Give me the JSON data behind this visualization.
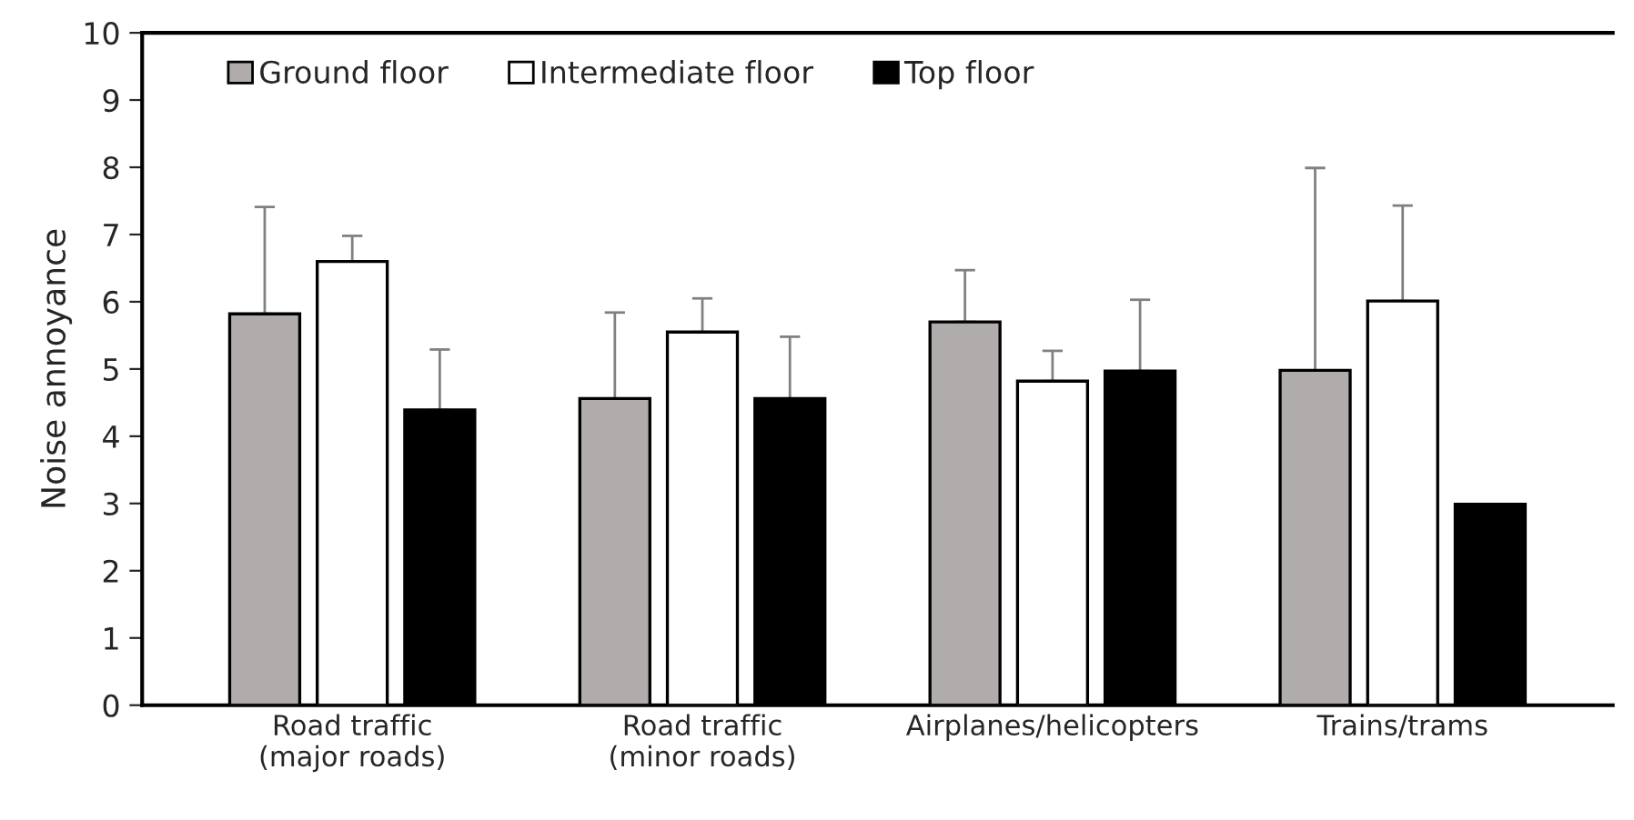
{
  "chart_data": {
    "type": "bar",
    "ylabel": "Noise annoyance",
    "categories": [
      "Road traffic\n(major roads)",
      "Road traffic\n(minor roads)",
      "Airplanes/helicopters",
      "Trains/trams"
    ],
    "series": [
      {
        "name": "Ground floor",
        "color": "#b0acab",
        "values": [
          5.82,
          4.56,
          5.7,
          4.98
        ],
        "errors": [
          [
            5.82,
            7.41
          ],
          [
            4.56,
            5.84
          ],
          [
            5.7,
            6.47
          ],
          [
            4.98,
            7.99
          ]
        ]
      },
      {
        "name": "Intermediate floor",
        "color": "#ffffff",
        "values": [
          6.6,
          5.55,
          4.82,
          6.01
        ],
        "errors": [
          [
            6.6,
            6.98
          ],
          [
            5.55,
            6.05
          ],
          [
            4.82,
            5.27
          ],
          [
            6.01,
            7.43
          ]
        ]
      },
      {
        "name": "Top floor",
        "color": "#000000",
        "values": [
          4.39,
          4.56,
          4.97,
          2.99
        ],
        "errors": [
          [
            4.39,
            5.29
          ],
          [
            4.56,
            5.48
          ],
          [
            4.97,
            6.03
          ],
          null
        ]
      }
    ],
    "ylim": [
      0,
      10
    ],
    "yticks": [
      0,
      1,
      2,
      3,
      4,
      5,
      6,
      7,
      8,
      9,
      10
    ],
    "grid": false,
    "legend": "top left"
  }
}
